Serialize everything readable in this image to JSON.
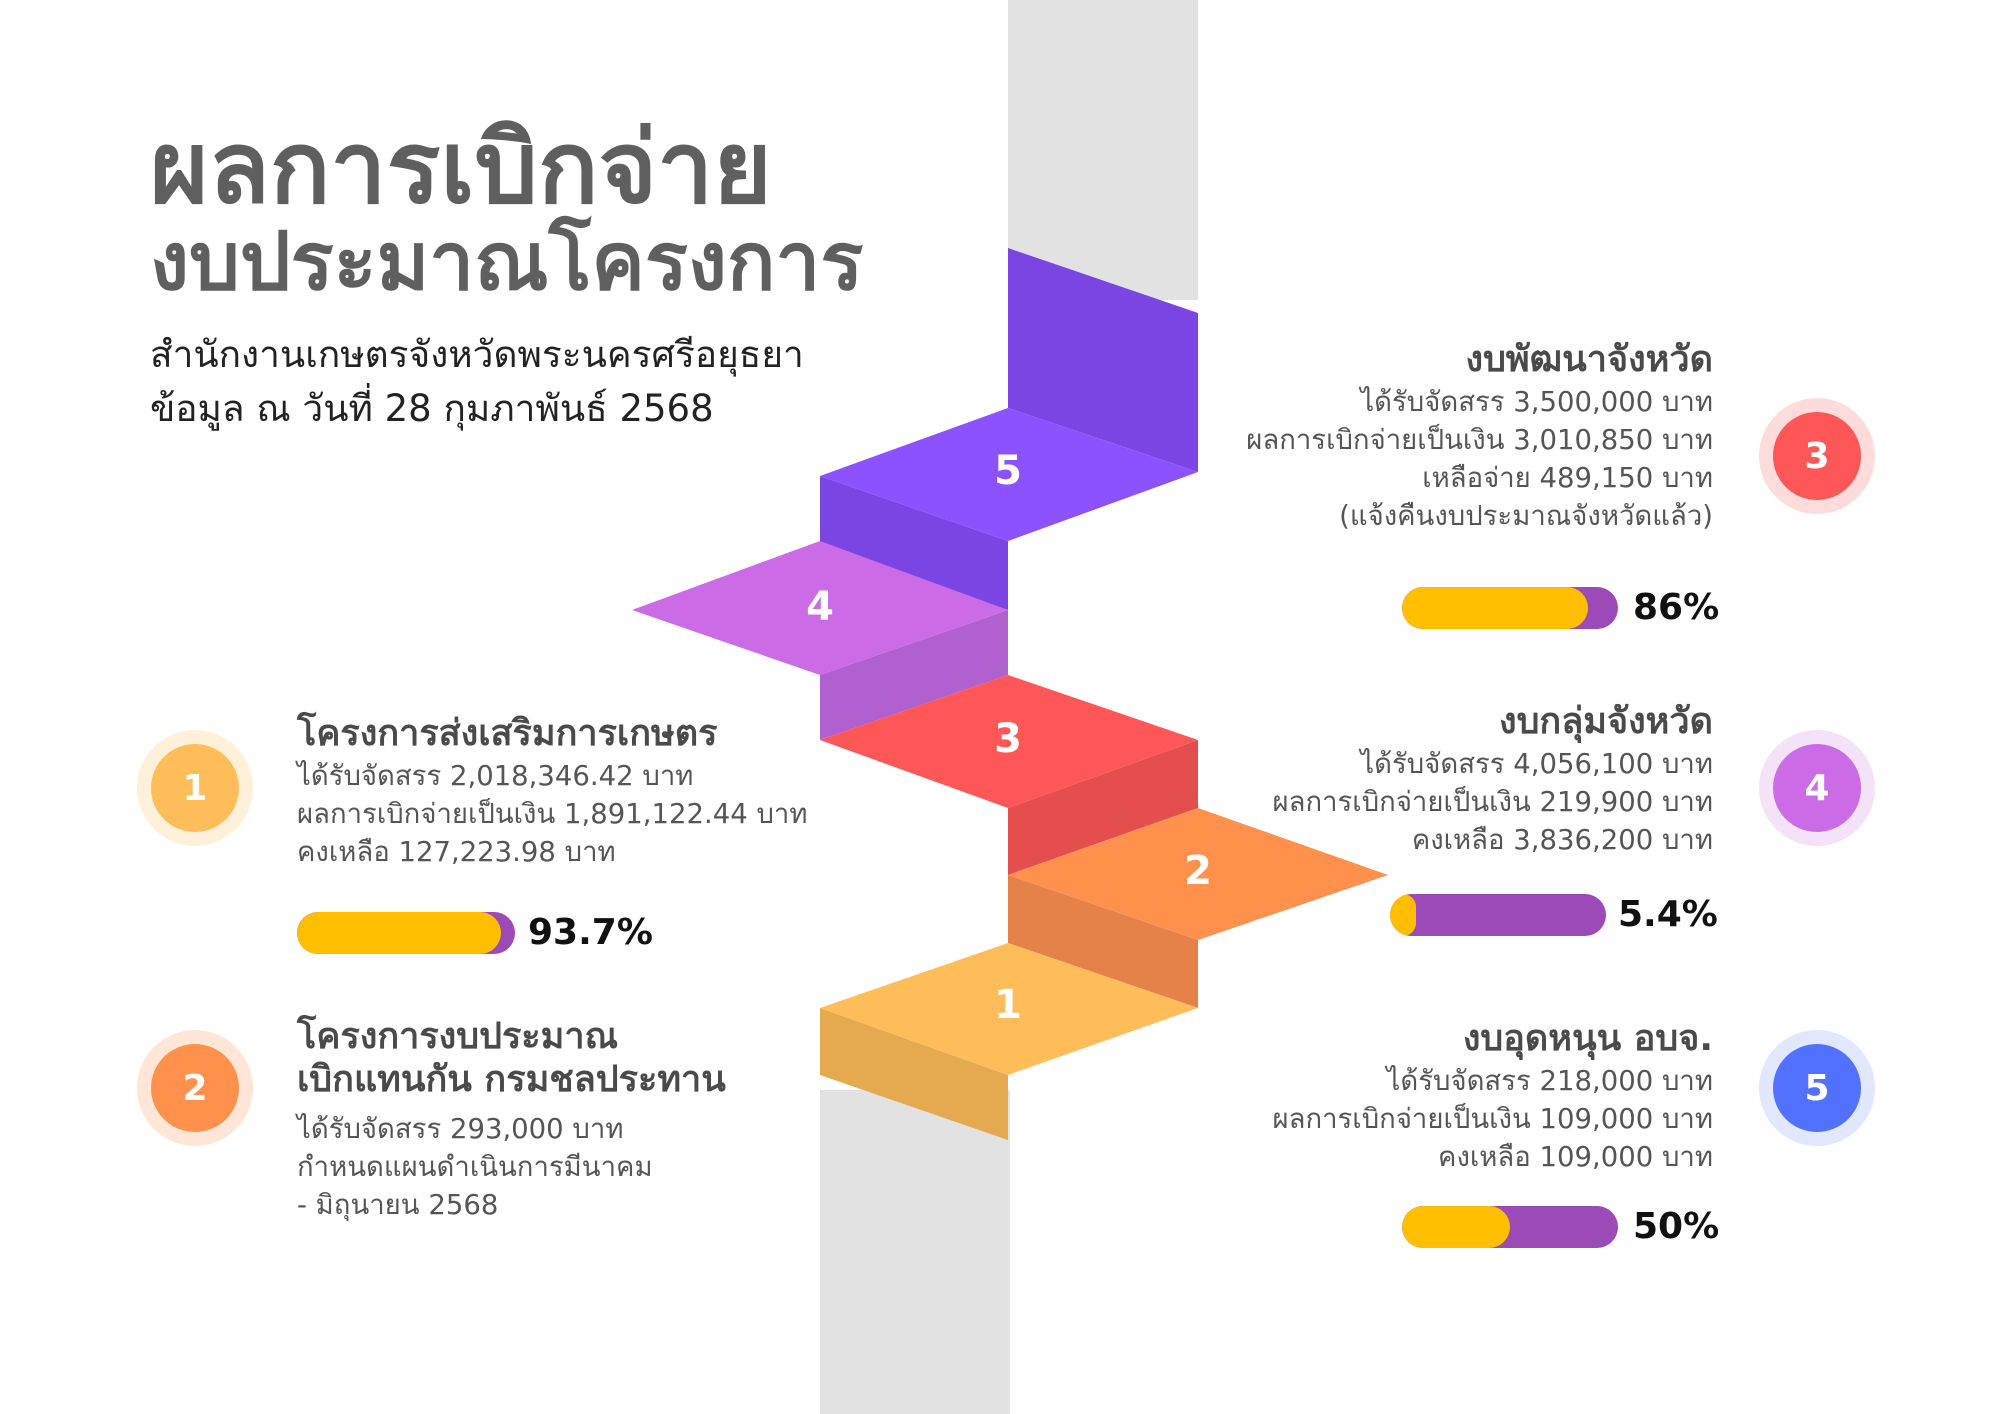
{
  "header": {
    "title_line1": "ผลการเบิกจ่าย",
    "title_line2": "งบประมาณโครงการ",
    "subtitle_line1": "สำนักงานเกษตรจังหวัดพระนครศรีอยุธยา",
    "subtitle_line2": "ข้อมูล ณ วันที่ 28 กุมภาพันธ์ 2568"
  },
  "steps": [
    "1",
    "2",
    "3",
    "4",
    "5"
  ],
  "colors": {
    "step1": "#ffbd59",
    "step2": "#ff914d",
    "step3": "#ff5757",
    "step4": "#cb6ce6",
    "step5": "#8c52ff",
    "progress_fill": "#ffbf00",
    "progress_track": "#9c4ab8"
  },
  "items": [
    {
      "number": "1",
      "title": "โครงการส่งเสริมการเกษตร",
      "lines": [
        "ได้รับจัดสรร 2,018,346.42 บาท",
        "ผลการเบิกจ่ายเป็นเงิน 1,891,122.44 บาท",
        "คงเหลือ 127,223.98 บาท"
      ],
      "percent_label": "93.7%",
      "percent": 93.7,
      "circle_color": "#ffbd59"
    },
    {
      "number": "2",
      "title_line1": "โครงการงบประมาณ",
      "title_line2": "เบิกแทนกัน กรมชลประทาน",
      "lines": [
        "ได้รับจัดสรร 293,000 บาท",
        "กำหนดแผนดำเนินการมีนาคม",
        "- มิถุนายน 2568"
      ],
      "circle_color": "#ff914d"
    },
    {
      "number": "3",
      "title": "งบพัฒนาจังหวัด",
      "lines": [
        "ได้รับจัดสรร 3,500,000 บาท",
        "ผลการเบิกจ่ายเป็นเงิน 3,010,850 บาท",
        "เหลือจ่าย 489,150 บาท",
        "(แจ้งคืนงบประมาณจังหวัดแล้ว)"
      ],
      "percent_label": "86%",
      "percent": 86,
      "circle_color": "#ff5757"
    },
    {
      "number": "4",
      "title": "งบกลุ่มจังหวัด",
      "lines": [
        "ได้รับจัดสรร 4,056,100 บาท",
        "ผลการเบิกจ่ายเป็นเงิน 219,900 บาท",
        "คงเหลือ 3,836,200 บาท"
      ],
      "percent_label": "5.4%",
      "percent": 5.4,
      "circle_color": "#cb6ce6"
    },
    {
      "number": "5",
      "title": "งบอุดหนุน อบจ.",
      "lines": [
        "ได้รับจัดสรร 218,000 บาท",
        "ผลการเบิกจ่ายเป็นเงิน 109,000 บาท",
        "คงเหลือ 109,000 บาท"
      ],
      "percent_label": "50%",
      "percent": 50,
      "circle_color": "#5271ff"
    }
  ]
}
